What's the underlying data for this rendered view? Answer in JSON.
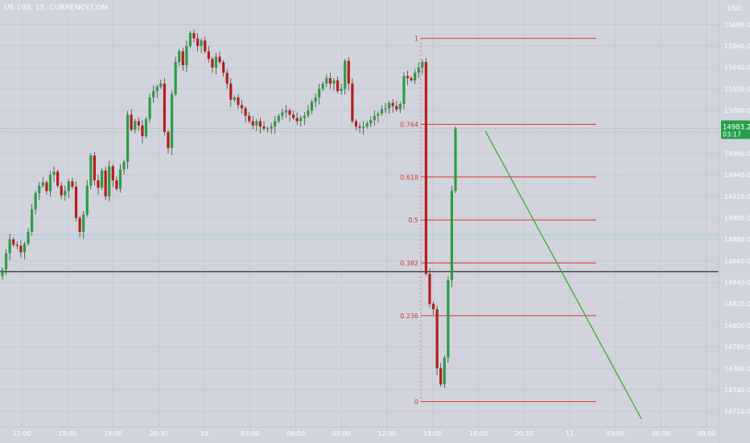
{
  "header": {
    "symbol": "US 100, 15, CURRENCY.COM",
    "currency": "USD"
  },
  "price_badge": {
    "price": "14983.2",
    "countdown": "03:17",
    "color": "#26a04a"
  },
  "colors": {
    "background": "#d1d4dc",
    "grid": "#c6c9d0",
    "up": "#2e9c45",
    "down": "#b81c1c",
    "fib": "#e0323a",
    "trendline": "#43a83a",
    "horizontal_line": "#000000",
    "current_price_line": "#6ad06a",
    "cyan_line": "#8cd8e4",
    "axis_text": "#ffffff"
  },
  "chart_data": {
    "type": "candlestick",
    "title": "US 100, 15, CURRENCY.COM",
    "ylabel": "USD",
    "ylim": [
      14710,
      15090
    ],
    "y_ticks": [
      15080.0,
      15060.0,
      15040.0,
      15020.0,
      15000.0,
      14980.0,
      14960.0,
      14940.0,
      14920.0,
      14900.0,
      14880.0,
      14860.0,
      14840.0,
      14820.0,
      14800.0,
      14780.0,
      14760.0,
      14740.0,
      14720.0
    ],
    "x_ticks": [
      "12:00",
      "15:00",
      "18:00",
      "20:30",
      "10",
      "03:00",
      "06:00",
      "09:00",
      "12:00",
      "15:00",
      "18:00",
      "20:30",
      "11",
      "03:00",
      "06:00",
      "09:00"
    ],
    "candles_close": [
      14852,
      14867,
      14880,
      14875,
      14874,
      14868,
      14876,
      14887,
      14908,
      14923,
      14930,
      14933,
      14925,
      14940,
      14943,
      14930,
      14921,
      14925,
      14934,
      14929,
      14900,
      14887,
      14903,
      14930,
      14958,
      14935,
      14928,
      14944,
      14920,
      14948,
      14935,
      14927,
      14945,
      14952,
      14996,
      14982,
      14990,
      14986,
      14976,
      14992,
      15012,
      15018,
      15022,
      15025,
      14980,
      14965,
      15015,
      15045,
      15055,
      15042,
      15060,
      15072,
      15067,
      15060,
      15065,
      15055,
      15048,
      15040,
      15050,
      15045,
      15035,
      15025,
      15010,
      15012,
      15005,
      15002,
      14995,
      14990,
      14986,
      14990,
      14985,
      14983,
      14983,
      14985,
      14990,
      14995,
      14998,
      15000,
      14996,
      14993,
      14990,
      14993,
      14995,
      15000,
      15008,
      15012,
      15020,
      15025,
      15030,
      15025,
      15028,
      15018,
      15020,
      15046,
      15025,
      14990,
      14985,
      14984,
      14985,
      14988,
      14991,
      14995,
      14997,
      15001,
      15002,
      15007,
      15004,
      15001,
      15006,
      15032,
      15030,
      15028,
      15035,
      15040,
      15045,
      14848,
      14820,
      14815,
      14760,
      14745,
      14770,
      14842,
      14925,
      14983.2
    ],
    "fibonacci": {
      "levels": [
        {
          "ratio": "1",
          "price": 15067
        },
        {
          "ratio": "0.764",
          "price": 14987
        },
        {
          "ratio": "0.618",
          "price": 14938
        },
        {
          "ratio": "0.5",
          "price": 14898
        },
        {
          "ratio": "0.382",
          "price": 14858
        },
        {
          "ratio": "0.236",
          "price": 14809
        },
        {
          "ratio": "0",
          "price": 14729
        }
      ]
    },
    "horizontal_line_price": 14850,
    "cyan_line_price": 14884,
    "current_price": 14983.2,
    "trendline": {
      "from_price": 14981,
      "to_price": 14713
    }
  }
}
